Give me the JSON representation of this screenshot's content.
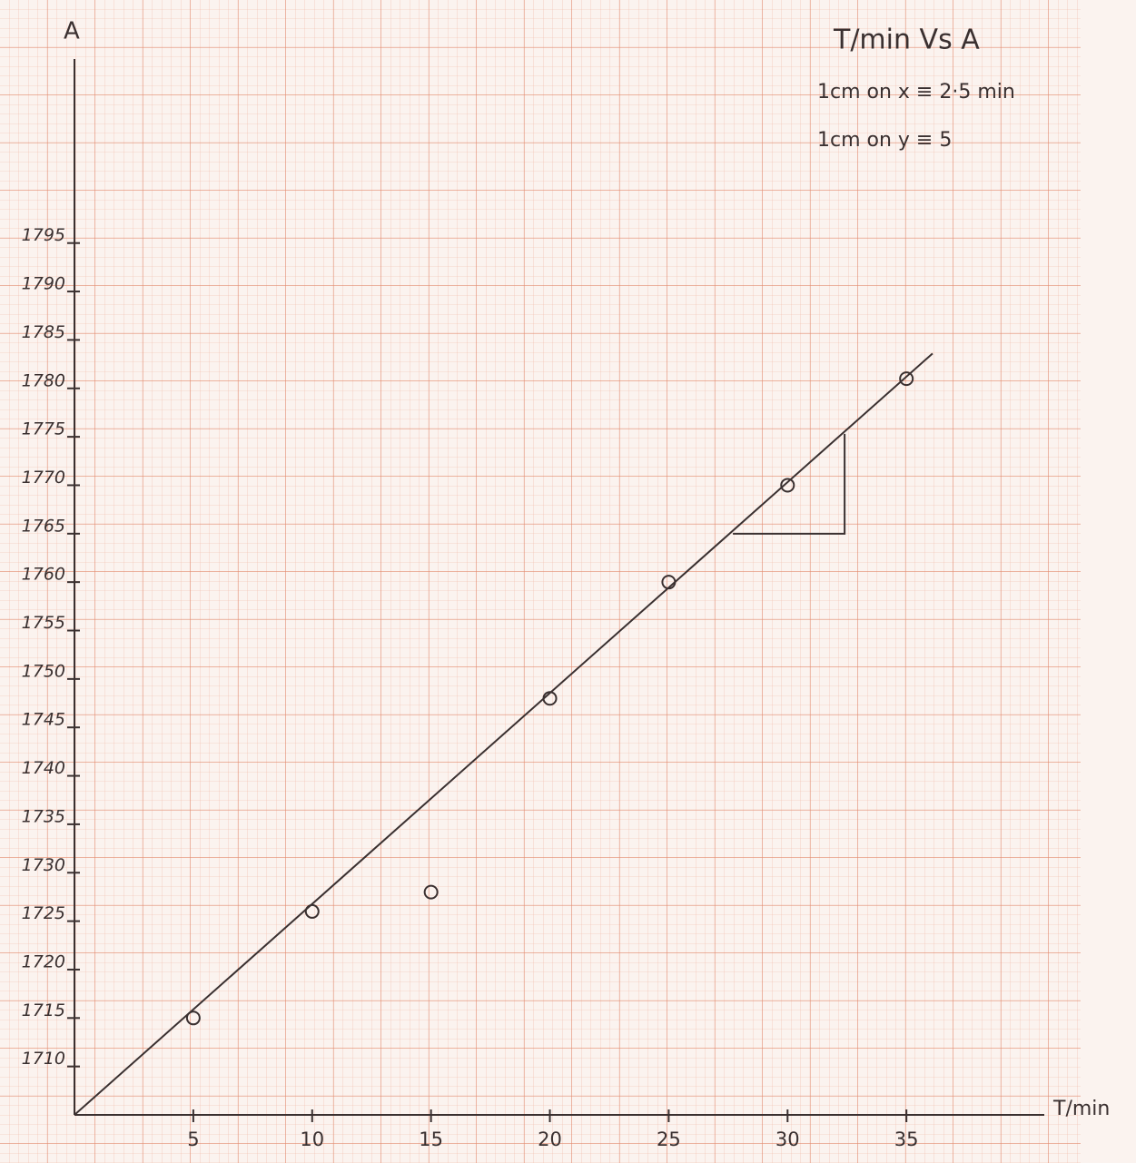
{
  "chart_data": {
    "type": "scatter",
    "title": "T/min Vs A",
    "notes": [
      "1cm on x ≡ 2·5 min",
      "1cm on y ≡ 5"
    ],
    "x_label": "T/min",
    "y_label": "A",
    "x": [
      5,
      10,
      15,
      20,
      25,
      30,
      35
    ],
    "values": [
      1715,
      1726,
      1728,
      1748,
      1760,
      1770,
      1781
    ],
    "color": "#3a3030",
    "fit_line": {
      "x": [
        0,
        36.1
      ],
      "y": [
        1705,
        1783.6
      ]
    },
    "slope_triangle": {
      "x": [
        27.7,
        32.4
      ],
      "y": [
        1765,
        1775.3
      ]
    },
    "xlim": [
      0,
      40.8
    ],
    "ylim": [
      1705,
      1814
    ],
    "xticks": [
      5,
      10,
      15,
      20,
      25,
      30,
      35
    ],
    "yticks": [
      1710,
      1715,
      1720,
      1725,
      1730,
      1735,
      1740,
      1745,
      1750,
      1755,
      1760,
      1765,
      1770,
      1775,
      1780,
      1785,
      1790,
      1795
    ]
  }
}
